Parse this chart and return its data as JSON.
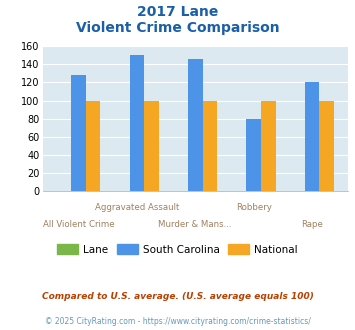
{
  "title_line1": "2017 Lane",
  "title_line2": "Violent Crime Comparison",
  "categories": [
    "All Violent Crime",
    "Aggravated Assault",
    "Murder & Mans...",
    "Robbery",
    "Rape"
  ],
  "lane_values": [
    0,
    0,
    0,
    0,
    0
  ],
  "sc_values": [
    128,
    150,
    146,
    80,
    120
  ],
  "national_values": [
    100,
    100,
    100,
    100,
    100
  ],
  "lane_color": "#7ab648",
  "sc_color": "#4d94e8",
  "national_color": "#f5a623",
  "bg_color": "#dce9f0",
  "ylim": [
    0,
    160
  ],
  "yticks": [
    0,
    20,
    40,
    60,
    80,
    100,
    120,
    140,
    160
  ],
  "footnote1": "Compared to U.S. average. (U.S. average equals 100)",
  "footnote2": "© 2025 CityRating.com - https://www.cityrating.com/crime-statistics/",
  "title_color": "#1a5fa8",
  "footnote1_color": "#b84000",
  "footnote2_color": "#6699bb",
  "legend_labels": [
    "Lane",
    "South Carolina",
    "National"
  ],
  "label_color": "#a08060",
  "bar_width": 0.25,
  "group_width": 1.0
}
